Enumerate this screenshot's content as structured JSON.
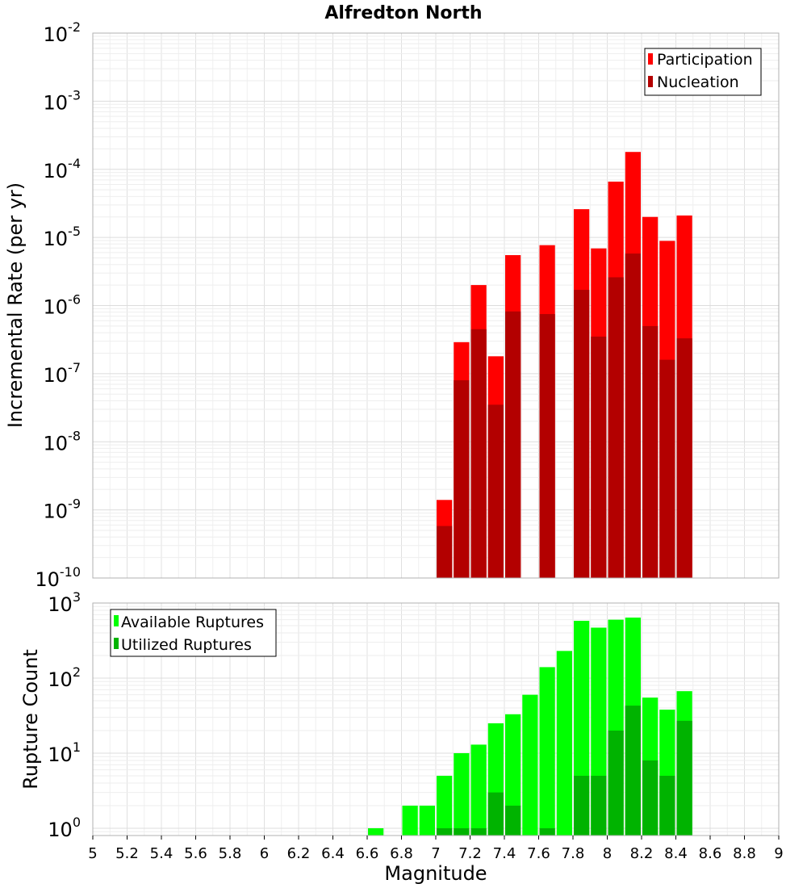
{
  "title": "Alfredton North",
  "chart_data": [
    {
      "type": "bar",
      "ylabel": "Incremental Rate (per yr)",
      "yscale": "log",
      "ylim": [
        1e-10,
        0.01
      ],
      "xlim": [
        5,
        9
      ],
      "ytick_exponents": [
        "-2",
        "-3",
        "-4",
        "-5",
        "-6",
        "-7",
        "-8",
        "-9",
        "-10"
      ],
      "grid": true,
      "legend_position": "top-right",
      "bar_width": 0.1,
      "series": [
        {
          "name": "Participation",
          "color": "#ff0000",
          "x": [
            7.05,
            7.15,
            7.25,
            7.35,
            7.45,
            7.65,
            7.85,
            7.95,
            8.05,
            8.15,
            8.25,
            8.35,
            8.45
          ],
          "values": [
            1.4e-09,
            2.9e-07,
            2e-06,
            1.8e-07,
            5.5e-06,
            7.7e-06,
            2.6e-05,
            6.9e-06,
            6.6e-05,
            0.00018,
            2e-05,
            8.9e-06,
            2.1e-05
          ]
        },
        {
          "name": "Nucleation",
          "color": "#b30000",
          "x": [
            7.05,
            7.15,
            7.25,
            7.35,
            7.45,
            7.65,
            7.85,
            7.95,
            8.05,
            8.15,
            8.25,
            8.35,
            8.45
          ],
          "values": [
            5.8e-10,
            8e-08,
            4.5e-07,
            3.5e-08,
            8.2e-07,
            7.5e-07,
            1.7e-06,
            3.5e-07,
            2.6e-06,
            5.8e-06,
            5e-07,
            1.6e-07,
            3.3e-07
          ]
        }
      ]
    },
    {
      "type": "bar",
      "ylabel": "Rupture Count",
      "xlabel": "Magnitude",
      "yscale": "log",
      "ylim": [
        0.8,
        1000
      ],
      "xlim": [
        5,
        9
      ],
      "xticks": [
        "5",
        "5.2",
        "5.4",
        "5.6",
        "5.8",
        "6",
        "6.2",
        "6.4",
        "6.6",
        "6.8",
        "7",
        "7.2",
        "7.4",
        "7.6",
        "7.8",
        "8",
        "8.2",
        "8.4",
        "8.6",
        "8.8",
        "9"
      ],
      "ytick_exponents": [
        "3",
        "2",
        "1",
        "0"
      ],
      "grid": true,
      "legend_position": "top-left",
      "bar_width": 0.1,
      "series": [
        {
          "name": "Available Ruptures",
          "color": "#00ff00",
          "x": [
            6.65,
            6.85,
            6.95,
            7.05,
            7.15,
            7.25,
            7.35,
            7.45,
            7.55,
            7.65,
            7.75,
            7.85,
            7.95,
            8.05,
            8.15,
            8.25,
            8.35,
            8.45
          ],
          "values": [
            1,
            2,
            2,
            5,
            10,
            13,
            25,
            33,
            60,
            140,
            230,
            580,
            470,
            600,
            640,
            55,
            38,
            67
          ]
        },
        {
          "name": "Utilized Ruptures",
          "color": "#00b300",
          "x": [
            7.05,
            7.15,
            7.25,
            7.35,
            7.45,
            7.65,
            7.85,
            7.95,
            8.05,
            8.15,
            8.25,
            8.35,
            8.45
          ],
          "values": [
            1,
            1,
            1,
            3,
            2,
            1,
            5,
            5,
            20,
            43,
            8,
            5,
            27
          ]
        }
      ]
    }
  ]
}
